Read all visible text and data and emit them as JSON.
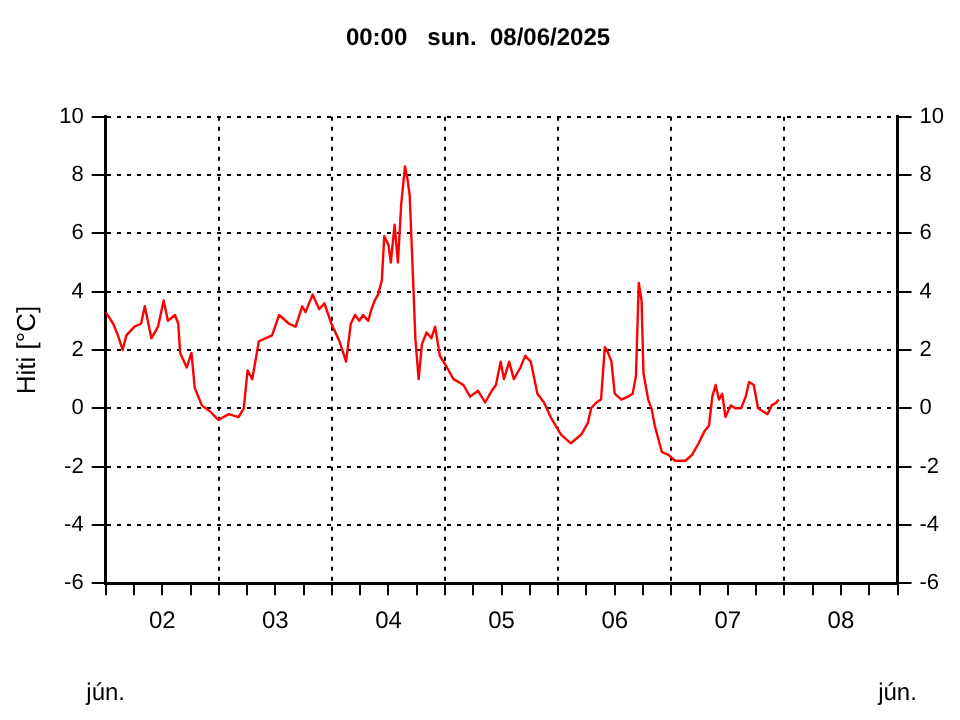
{
  "chart_data": {
    "type": "line",
    "title": "00:00   sun.  08/06/2025",
    "ylabel": "Hiti [°C]",
    "annotations": [
      "jún.",
      "jún."
    ],
    "x": [
      "2025-06-02T00:00",
      "2025-06-02T01:36",
      "2025-06-02T02:36",
      "2025-06-02T03:36",
      "2025-06-02T04:24",
      "2025-06-02T06:06",
      "2025-06-02T07:30",
      "2025-06-02T08:18",
      "2025-06-02T09:42",
      "2025-06-02T11:06",
      "2025-06-02T12:18",
      "2025-06-02T13:12",
      "2025-06-02T14:42",
      "2025-06-02T15:24",
      "2025-06-02T15:48",
      "2025-06-02T17:12",
      "2025-06-02T18:12",
      "2025-06-02T18:54",
      "2025-06-02T20:24",
      "2025-06-02T22:06",
      "2025-06-02T23:54",
      "2025-06-03T02:06",
      "2025-06-03T04:12",
      "2025-06-03T05:18",
      "2025-06-03T06:06",
      "2025-06-03T07:06",
      "2025-06-03T08:30",
      "2025-06-03T09:54",
      "2025-06-03T11:18",
      "2025-06-03T12:48",
      "2025-06-03T14:54",
      "2025-06-03T16:18",
      "2025-06-03T17:42",
      "2025-06-03T18:24",
      "2025-06-03T19:54",
      "2025-06-03T21:18",
      "2025-06-03T22:24",
      "2025-06-03T23:54",
      "2025-06-04T01:36",
      "2025-06-04T03:00",
      "2025-06-04T04:00",
      "2025-06-04T04:54",
      "2025-06-04T05:48",
      "2025-06-04T06:36",
      "2025-06-04T07:42",
      "2025-06-04T08:24",
      "2025-06-04T09:06",
      "2025-06-04T09:48",
      "2025-06-04T10:36",
      "2025-06-04T11:06",
      "2025-06-04T12:00",
      "2025-06-04T12:30",
      "2025-06-04T13:18",
      "2025-06-04T14:00",
      "2025-06-04T14:42",
      "2025-06-04T15:30",
      "2025-06-04T16:06",
      "2025-06-04T16:30",
      "2025-06-04T17:12",
      "2025-06-04T17:42",
      "2025-06-04T18:24",
      "2025-06-04T19:06",
      "2025-06-04T20:06",
      "2025-06-04T21:06",
      "2025-06-04T21:54",
      "2025-06-04T22:54",
      "2025-06-05T00:24",
      "2025-06-05T01:48",
      "2025-06-05T03:54",
      "2025-06-05T05:18",
      "2025-06-05T07:00",
      "2025-06-05T08:30",
      "2025-06-05T09:54",
      "2025-06-05T10:48",
      "2025-06-05T11:48",
      "2025-06-05T12:30",
      "2025-06-05T13:36",
      "2025-06-05T14:36",
      "2025-06-05T16:00",
      "2025-06-05T17:00",
      "2025-06-05T18:12",
      "2025-06-05T19:36",
      "2025-06-05T21:00",
      "2025-06-05T22:24",
      "2025-06-06T00:36",
      "2025-06-06T02:42",
      "2025-06-06T04:54",
      "2025-06-06T06:18",
      "2025-06-06T07:00",
      "2025-06-06T08:06",
      "2025-06-06T09:06",
      "2025-06-06T09:54",
      "2025-06-06T10:36",
      "2025-06-06T11:18",
      "2025-06-06T12:00",
      "2025-06-06T13:24",
      "2025-06-06T14:48",
      "2025-06-06T15:48",
      "2025-06-06T16:30",
      "2025-06-06T17:06",
      "2025-06-06T17:42",
      "2025-06-06T18:06",
      "2025-06-06T19:06",
      "2025-06-06T19:48",
      "2025-06-06T20:30",
      "2025-06-06T22:00",
      "2025-06-06T23:24",
      "2025-06-07T00:48",
      "2025-06-07T03:00",
      "2025-06-07T04:24",
      "2025-06-07T05:48",
      "2025-06-07T07:00",
      "2025-06-07T08:00",
      "2025-06-07T08:42",
      "2025-06-07T09:24",
      "2025-06-07T10:06",
      "2025-06-07T10:48",
      "2025-06-07T11:30",
      "2025-06-07T12:36",
      "2025-06-07T13:36",
      "2025-06-07T14:48",
      "2025-06-07T15:48",
      "2025-06-07T16:30",
      "2025-06-07T17:30",
      "2025-06-07T18:24",
      "2025-06-07T19:24",
      "2025-06-07T20:24",
      "2025-06-07T21:18",
      "2025-06-07T22:18",
      "2025-06-07T22:48"
    ],
    "series": [
      {
        "color": "#ff0000",
        "values": [
          3.3,
          2.9,
          2.5,
          2.0,
          2.5,
          2.8,
          2.9,
          3.5,
          2.4,
          2.8,
          3.7,
          3.0,
          3.2,
          2.9,
          1.9,
          1.4,
          1.9,
          0.7,
          0.1,
          -0.1,
          -0.4,
          -0.2,
          -0.3,
          0.0,
          1.3,
          1.0,
          2.3,
          2.4,
          2.5,
          3.2,
          2.9,
          2.8,
          3.5,
          3.3,
          3.9,
          3.4,
          3.6,
          2.9,
          2.3,
          1.6,
          2.9,
          3.2,
          3.0,
          3.2,
          3.0,
          3.4,
          3.7,
          3.9,
          4.4,
          5.9,
          5.6,
          5.0,
          6.3,
          5.0,
          7.0,
          8.3,
          7.8,
          7.3,
          4.5,
          2.4,
          1.0,
          2.2,
          2.6,
          2.4,
          2.8,
          1.8,
          1.4,
          1.0,
          0.8,
          0.4,
          0.6,
          0.2,
          0.6,
          0.8,
          1.6,
          1.0,
          1.6,
          1.0,
          1.4,
          1.8,
          1.6,
          0.5,
          0.2,
          -0.3,
          -0.9,
          -1.2,
          -0.9,
          -0.5,
          0.0,
          0.2,
          0.3,
          2.1,
          1.9,
          1.6,
          0.5,
          0.3,
          0.4,
          0.5,
          1.1,
          4.3,
          3.7,
          1.2,
          0.3,
          0.0,
          -0.6,
          -1.5,
          -1.6,
          -1.8,
          -1.8,
          -1.6,
          -1.2,
          -0.8,
          -0.6,
          0.4,
          0.8,
          0.3,
          0.5,
          -0.3,
          0.1,
          0.0,
          0.0,
          0.4,
          0.9,
          0.8,
          0.0,
          -0.1,
          -0.2,
          0.1,
          0.2,
          0.3
        ]
      }
    ],
    "xlim": [
      "2025-06-02",
      "2025-06-09"
    ],
    "xticks": [
      {
        "value": "2025-06-02T00:00",
        "label": null
      },
      {
        "value": "2025-06-02T06:00",
        "label": null
      },
      {
        "value": "2025-06-02T12:00",
        "label": "02"
      },
      {
        "value": "2025-06-02T18:00",
        "label": null
      },
      {
        "value": "2025-06-03T00:00",
        "label": null
      },
      {
        "value": "2025-06-03T06:00",
        "label": null
      },
      {
        "value": "2025-06-03T12:00",
        "label": "03"
      },
      {
        "value": "2025-06-03T18:00",
        "label": null
      },
      {
        "value": "2025-06-04T00:00",
        "label": null
      },
      {
        "value": "2025-06-04T06:00",
        "label": null
      },
      {
        "value": "2025-06-04T12:00",
        "label": "04"
      },
      {
        "value": "2025-06-04T18:00",
        "label": null
      },
      {
        "value": "2025-06-05T00:00",
        "label": null
      },
      {
        "value": "2025-06-05T06:00",
        "label": null
      },
      {
        "value": "2025-06-05T12:00",
        "label": "05"
      },
      {
        "value": "2025-06-05T18:00",
        "label": null
      },
      {
        "value": "2025-06-06T00:00",
        "label": null
      },
      {
        "value": "2025-06-06T06:00",
        "label": null
      },
      {
        "value": "2025-06-06T12:00",
        "label": "06"
      },
      {
        "value": "2025-06-06T18:00",
        "label": null
      },
      {
        "value": "2025-06-07T00:00",
        "label": null
      },
      {
        "value": "2025-06-07T06:00",
        "label": null
      },
      {
        "value": "2025-06-07T12:00",
        "label": "07"
      },
      {
        "value": "2025-06-07T18:00",
        "label": null
      },
      {
        "value": "2025-06-08T00:00",
        "label": null
      },
      {
        "value": "2025-06-08T06:00",
        "label": null
      },
      {
        "value": "2025-06-08T12:00",
        "label": "08"
      },
      {
        "value": "2025-06-08T18:00",
        "label": null
      },
      {
        "value": "2025-06-09T00:00",
        "label": null
      }
    ],
    "ylim": [
      -6,
      10
    ],
    "yticks": [
      -6,
      -4,
      -2,
      0,
      2,
      4,
      6,
      8,
      10
    ],
    "y2lim": [
      -6,
      10
    ],
    "y2ticks": [
      -6,
      -4,
      -2,
      0,
      2,
      4,
      6,
      8,
      10
    ],
    "grid": true,
    "legend": false,
    "marker": "none",
    "line_style": "solid"
  }
}
